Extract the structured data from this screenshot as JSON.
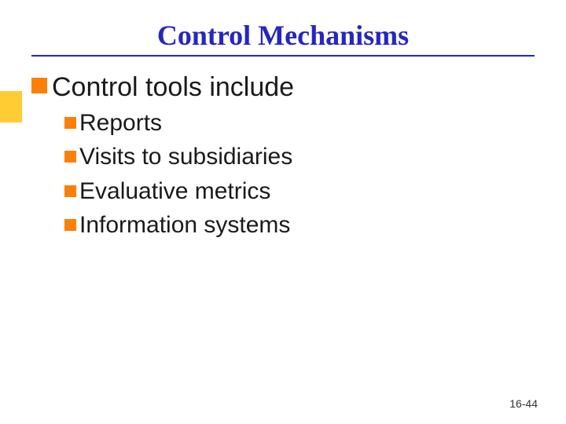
{
  "slide": {
    "title": "Control Mechanisms",
    "title_color": "#2626c0",
    "title_fontsize": 36,
    "underline_color": "#2626c0",
    "accent_color": "#ffcc33",
    "bullet_color": "#fc8008",
    "body_text_color": "#1a1a1a",
    "background_color": "#ffffff",
    "level1_fontsize": 34,
    "level2_fontsize": 30,
    "main_point": "Control tools include",
    "sub_points": [
      "Reports",
      "Visits to subsidiaries",
      "Evaluative metrics",
      "Information systems"
    ],
    "footer": "16-44",
    "footer_fontsize": 14
  }
}
